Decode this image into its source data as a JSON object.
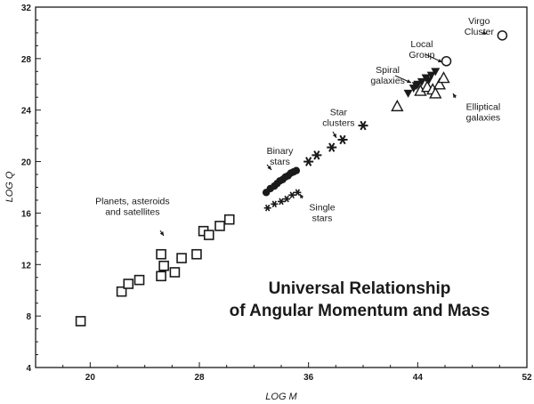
{
  "chart_data": {
    "type": "scatter",
    "title": [
      "Universal Relationship",
      "of Angular Momentum and Mass"
    ],
    "xlabel": "LOG M",
    "ylabel": "LOG Q",
    "xlim": [
      16,
      52
    ],
    "ylim": [
      4,
      32
    ],
    "xticks": [
      20,
      28,
      36,
      44,
      52
    ],
    "yticks": [
      4,
      8,
      12,
      16,
      20,
      24,
      28,
      32
    ],
    "grid": false,
    "series": [
      {
        "marker": "open-square",
        "points": [
          [
            19.3,
            7.6
          ],
          [
            22.3,
            9.9
          ],
          [
            22.8,
            10.5
          ],
          [
            23.6,
            10.8
          ],
          [
            25.2,
            11.1
          ],
          [
            25.4,
            11.9
          ],
          [
            25.2,
            12.8
          ],
          [
            26.2,
            11.4
          ],
          [
            26.7,
            12.5
          ],
          [
            27.8,
            12.8
          ],
          [
            28.3,
            14.6
          ],
          [
            28.7,
            14.3
          ],
          [
            29.5,
            15.0
          ],
          [
            30.2,
            15.5
          ]
        ]
      },
      {
        "marker": "filled-circle",
        "points": [
          [
            32.9,
            17.6
          ],
          [
            33.2,
            17.9
          ],
          [
            33.5,
            18.1
          ],
          [
            33.7,
            18.3
          ],
          [
            33.9,
            18.5
          ],
          [
            34.1,
            18.6
          ],
          [
            34.3,
            18.8
          ],
          [
            34.5,
            18.9
          ],
          [
            34.7,
            19.1
          ],
          [
            34.9,
            19.2
          ],
          [
            35.1,
            19.3
          ]
        ]
      },
      {
        "marker": "star-small",
        "points": [
          [
            33.0,
            16.4
          ],
          [
            33.5,
            16.7
          ],
          [
            34.0,
            16.9
          ],
          [
            34.4,
            17.1
          ],
          [
            34.8,
            17.4
          ],
          [
            35.2,
            17.6
          ]
        ]
      },
      {
        "marker": "asterisk",
        "points": [
          [
            36.0,
            20.0
          ],
          [
            36.6,
            20.5
          ],
          [
            37.7,
            21.1
          ],
          [
            38.5,
            21.7
          ],
          [
            40.0,
            22.8
          ]
        ]
      },
      {
        "marker": "filled-triangle-down",
        "points": [
          [
            43.3,
            25.3
          ],
          [
            43.7,
            25.7
          ],
          [
            44.0,
            26.0
          ],
          [
            44.3,
            26.2
          ],
          [
            44.6,
            26.5
          ],
          [
            45.0,
            26.7
          ],
          [
            45.3,
            27.0
          ],
          [
            43.9,
            25.9
          ],
          [
            44.8,
            26.3
          ]
        ]
      },
      {
        "marker": "open-triangle",
        "points": [
          [
            42.5,
            24.3
          ],
          [
            44.2,
            25.5
          ],
          [
            44.7,
            25.8
          ],
          [
            45.1,
            25.6
          ],
          [
            45.6,
            26.0
          ],
          [
            45.9,
            26.5
          ],
          [
            45.3,
            25.3
          ]
        ]
      },
      {
        "marker": "open-circle",
        "points": [
          [
            46.1,
            27.8
          ],
          [
            50.2,
            29.8
          ]
        ]
      }
    ],
    "annotations": [
      {
        "lines": [
          "Virgo",
          "Cluster"
        ],
        "x": 48.5,
        "y": 30.7
      },
      {
        "lines": [
          "Local",
          "Group"
        ],
        "x": 44.3,
        "y": 28.9
      },
      {
        "lines": [
          "Spiral",
          "galaxies"
        ],
        "x": 41.8,
        "y": 26.9
      },
      {
        "lines": [
          "Elliptical",
          "galaxies"
        ],
        "x": 48.8,
        "y": 24.0
      },
      {
        "lines": [
          "Star",
          "clusters"
        ],
        "x": 38.2,
        "y": 23.6
      },
      {
        "lines": [
          "Binary",
          "stars"
        ],
        "x": 33.9,
        "y": 20.6
      },
      {
        "lines": [
          "Single",
          "stars"
        ],
        "x": 37.0,
        "y": 16.2
      },
      {
        "lines": [
          "Planets, asteroids",
          "and satellites"
        ],
        "x": 23.1,
        "y": 16.7
      }
    ]
  }
}
